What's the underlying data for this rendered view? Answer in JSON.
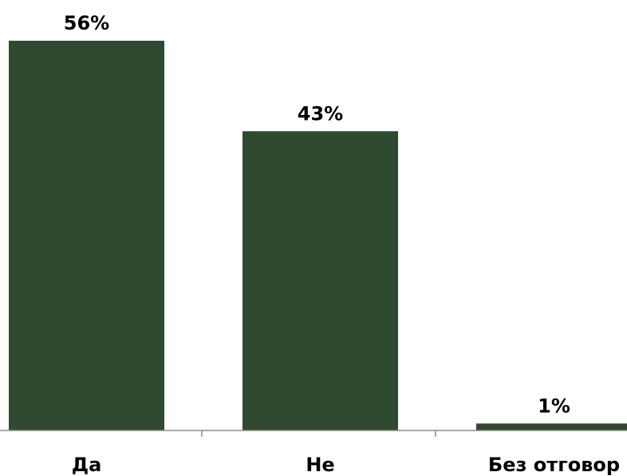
{
  "chart_data": {
    "type": "bar",
    "categories": [
      "Да",
      "Не",
      "Без отговор"
    ],
    "values": [
      56,
      43,
      1
    ],
    "value_labels": [
      "56%",
      "43%",
      "1%"
    ],
    "title": "",
    "xlabel": "",
    "ylabel": "",
    "ylim": [
      0,
      60
    ],
    "grid": false,
    "legend": "none",
    "bar_color": "#2f4a30",
    "axis_color": "#8c8c8c"
  }
}
